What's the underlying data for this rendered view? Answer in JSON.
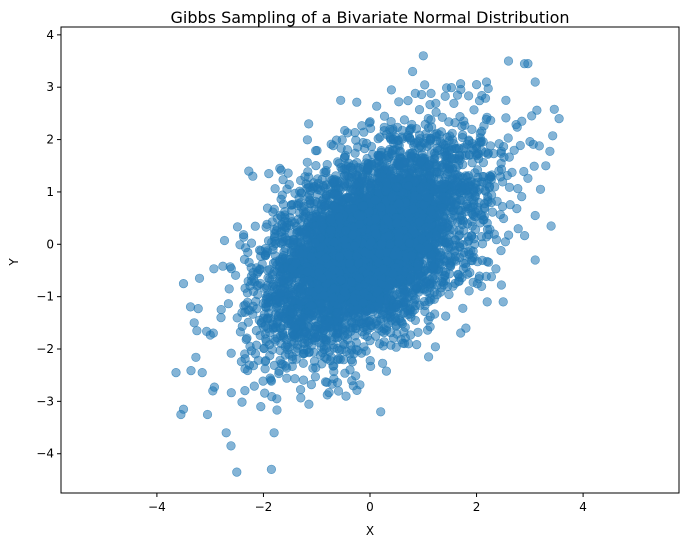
{
  "chart_data": {
    "type": "scatter",
    "title": "Gibbs Sampling of a Bivariate Normal Distribution",
    "xlabel": "X",
    "ylabel": "Y",
    "xlim": [
      -5.8,
      5.8
    ],
    "ylim": [
      -4.75,
      4.15
    ],
    "xticks": [
      -4,
      -2,
      0,
      2,
      4
    ],
    "yticks": [
      -4,
      -3,
      -2,
      -1,
      0,
      1,
      2,
      3,
      4
    ],
    "grid": false,
    "legend": "none",
    "marker_color": "#1f77b4",
    "marker_alpha": 0.55,
    "sample_distribution": {
      "mean": [
        0,
        0
      ],
      "std": [
        1,
        1
      ],
      "correlation": 0.5,
      "n_samples": 5000
    },
    "outlier_points": [
      {
        "x": 1.0,
        "y": 3.6
      },
      {
        "x": 2.6,
        "y": 3.5
      },
      {
        "x": 2.9,
        "y": 3.45
      },
      {
        "x": 0.8,
        "y": 3.3
      },
      {
        "x": 3.1,
        "y": 3.1
      },
      {
        "x": 3.55,
        "y": 2.4
      },
      {
        "x": 3.3,
        "y": 1.5
      },
      {
        "x": 3.2,
        "y": 1.05
      },
      {
        "x": 3.1,
        "y": 0.55
      },
      {
        "x": 3.4,
        "y": 0.35
      },
      {
        "x": 3.1,
        "y": -0.3
      },
      {
        "x": 2.2,
        "y": -1.1
      },
      {
        "x": 2.5,
        "y": -1.1
      },
      {
        "x": -0.55,
        "y": 2.75
      },
      {
        "x": -1.15,
        "y": 2.3
      },
      {
        "x": -2.2,
        "y": 1.3
      },
      {
        "x": -1.9,
        "y": 1.35
      },
      {
        "x": -3.5,
        "y": -0.75
      },
      {
        "x": -3.2,
        "y": -0.65
      },
      {
        "x": -3.3,
        "y": -1.5
      },
      {
        "x": -3.25,
        "y": -1.65
      },
      {
        "x": -3.15,
        "y": -2.45
      },
      {
        "x": -3.5,
        "y": -3.15
      },
      {
        "x": -3.55,
        "y": -3.25
      },
      {
        "x": -3.05,
        "y": -3.25
      },
      {
        "x": -2.95,
        "y": -2.8
      },
      {
        "x": -2.7,
        "y": -3.6
      },
      {
        "x": -2.5,
        "y": -4.35
      },
      {
        "x": -1.85,
        "y": -4.3
      },
      {
        "x": -1.8,
        "y": -3.6
      },
      {
        "x": 0.2,
        "y": -3.2
      },
      {
        "x": -2.05,
        "y": -3.1
      },
      {
        "x": -1.75,
        "y": -2.95
      },
      {
        "x": -0.45,
        "y": -2.9
      },
      {
        "x": 1.1,
        "y": -2.15
      },
      {
        "x": 1.8,
        "y": -1.6
      },
      {
        "x": 2.85,
        "y": 2.35
      },
      {
        "x": 2.55,
        "y": 2.75
      },
      {
        "x": 2.0,
        "y": 3.05
      }
    ]
  }
}
